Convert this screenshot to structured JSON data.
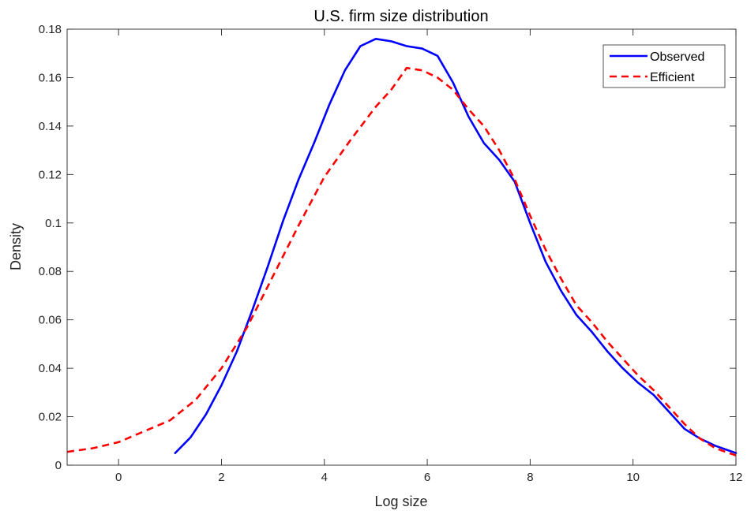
{
  "chart_data": {
    "type": "line",
    "title": "U.S. firm size distribution",
    "xlabel": "Log size",
    "ylabel": "Density",
    "xlim": [
      -1,
      12
    ],
    "ylim": [
      0,
      0.18
    ],
    "xticks": [
      0,
      2,
      4,
      6,
      8,
      10,
      12
    ],
    "xtick_labels": [
      "0",
      "2",
      "4",
      "6",
      "8",
      "10",
      "12"
    ],
    "yticks": [
      0,
      0.02,
      0.04,
      0.06,
      0.08,
      0.1,
      0.12,
      0.14,
      0.16,
      0.18
    ],
    "ytick_labels": [
      "0",
      "0.02",
      "0.04",
      "0.06",
      "0.08",
      "0.1",
      "0.12",
      "0.14",
      "0.16",
      "0.18"
    ],
    "grid": false,
    "legend_position": "top-right",
    "series": [
      {
        "name": "Observed",
        "color": "#0000ff",
        "dash": "solid",
        "x": [
          1.1,
          1.4,
          1.7,
          2.0,
          2.3,
          2.6,
          2.9,
          3.2,
          3.5,
          3.8,
          4.1,
          4.4,
          4.7,
          5.0,
          5.3,
          5.6,
          5.9,
          6.2,
          6.5,
          6.8,
          7.1,
          7.4,
          7.7,
          8.0,
          8.3,
          8.6,
          8.9,
          9.2,
          9.5,
          9.8,
          10.1,
          10.4,
          10.7,
          11.0,
          11.3,
          11.6,
          12.0
        ],
        "y": [
          0.005,
          0.0115,
          0.021,
          0.033,
          0.047,
          0.064,
          0.082,
          0.101,
          0.118,
          0.133,
          0.149,
          0.163,
          0.173,
          0.176,
          0.175,
          0.173,
          0.172,
          0.169,
          0.158,
          0.144,
          0.133,
          0.126,
          0.117,
          0.1,
          0.084,
          0.072,
          0.062,
          0.055,
          0.047,
          0.04,
          0.034,
          0.029,
          0.022,
          0.015,
          0.011,
          0.008,
          0.005
        ]
      },
      {
        "name": "Efficient",
        "color": "#ff0000",
        "dash": "dashed",
        "x": [
          -1.0,
          -0.5,
          0.0,
          0.5,
          1.0,
          1.5,
          2.0,
          2.5,
          3.0,
          3.5,
          4.0,
          4.5,
          5.0,
          5.3,
          5.6,
          5.9,
          6.2,
          6.5,
          6.8,
          7.1,
          7.4,
          7.7,
          8.0,
          8.3,
          8.6,
          8.9,
          9.2,
          9.5,
          9.8,
          10.1,
          10.4,
          10.7,
          11.0,
          11.3,
          11.6,
          12.0
        ],
        "y": [
          0.0055,
          0.007,
          0.0095,
          0.014,
          0.0185,
          0.027,
          0.04,
          0.057,
          0.078,
          0.099,
          0.119,
          0.134,
          0.148,
          0.155,
          0.164,
          0.163,
          0.16,
          0.155,
          0.147,
          0.14,
          0.13,
          0.118,
          0.103,
          0.089,
          0.077,
          0.066,
          0.059,
          0.051,
          0.044,
          0.037,
          0.031,
          0.024,
          0.017,
          0.011,
          0.007,
          0.004
        ]
      }
    ]
  }
}
